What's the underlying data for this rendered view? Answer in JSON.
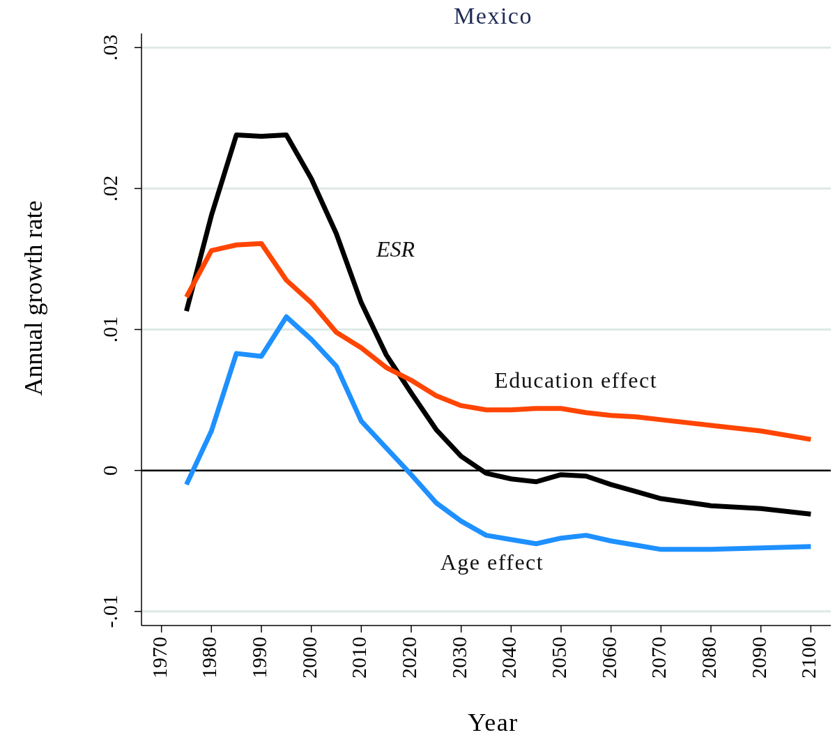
{
  "chart_data": {
    "type": "line",
    "title": "Mexico",
    "xlabel": "Year",
    "ylabel": "Annual growth rate",
    "xlim": [
      1966,
      2104
    ],
    "xticks": [
      1970,
      1980,
      1990,
      2000,
      2010,
      2020,
      2030,
      2040,
      2050,
      2060,
      2070,
      2080,
      2090,
      2100
    ],
    "ylim": [
      -0.011,
      0.031
    ],
    "yticks": [
      {
        "value": -0.01,
        "label": "-.01"
      },
      0,
      {
        "value": 0.01,
        "label": ".01"
      },
      {
        "value": 0.02,
        "label": ".02"
      },
      {
        "value": 0.03,
        "label": ".03"
      }
    ],
    "grid": "y",
    "marker": "none",
    "line_style": "solid",
    "ref_lines": [
      {
        "axis": "y",
        "value": 0,
        "color": "#000000"
      }
    ],
    "series": [
      {
        "name": "ESR",
        "color": "#000000",
        "x": [
          1975,
          1980,
          1985,
          1990,
          1995,
          2000,
          2005,
          2010,
          2015,
          2020,
          2025,
          2030,
          2035,
          2040,
          2045,
          2050,
          2055,
          2060,
          2065,
          2070,
          2080,
          2090,
          2095,
          2100
        ],
        "values": [
          0.0113,
          0.0181,
          0.0238,
          0.0237,
          0.0238,
          0.0207,
          0.0168,
          0.0119,
          0.0082,
          0.0055,
          0.0029,
          0.001,
          -0.0002,
          -0.0006,
          -0.0008,
          -0.0003,
          -0.0004,
          -0.001,
          -0.0015,
          -0.002,
          -0.0025,
          -0.0027,
          -0.0029,
          -0.0031
        ]
      },
      {
        "name": "Education effect",
        "color": "#ff4500",
        "x": [
          1975,
          1980,
          1985,
          1990,
          1995,
          2000,
          2005,
          2010,
          2015,
          2020,
          2025,
          2030,
          2035,
          2040,
          2045,
          2050,
          2055,
          2060,
          2065,
          2070,
          2080,
          2090,
          2100
        ],
        "values": [
          0.0123,
          0.0156,
          0.016,
          0.0161,
          0.0135,
          0.0119,
          0.0098,
          0.0087,
          0.0073,
          0.0064,
          0.0053,
          0.0046,
          0.0043,
          0.0043,
          0.0044,
          0.0044,
          0.0041,
          0.0039,
          0.0038,
          0.0036,
          0.0032,
          0.0028,
          0.0022
        ]
      },
      {
        "name": "Age effect",
        "color": "#1e90ff",
        "x": [
          1975,
          1980,
          1985,
          1990,
          1995,
          2000,
          2005,
          2010,
          2015,
          2020,
          2025,
          2030,
          2035,
          2040,
          2045,
          2050,
          2055,
          2060,
          2065,
          2070,
          2080,
          2090,
          2100
        ],
        "values": [
          -0.001,
          0.0028,
          0.0083,
          0.0081,
          0.0109,
          0.0093,
          0.0074,
          0.0035,
          0.0016,
          -0.0003,
          -0.0023,
          -0.0036,
          -0.0046,
          -0.0049,
          -0.0052,
          -0.0048,
          -0.0046,
          -0.005,
          -0.0053,
          -0.0056,
          -0.0056,
          -0.0055,
          -0.0054
        ]
      }
    ]
  }
}
